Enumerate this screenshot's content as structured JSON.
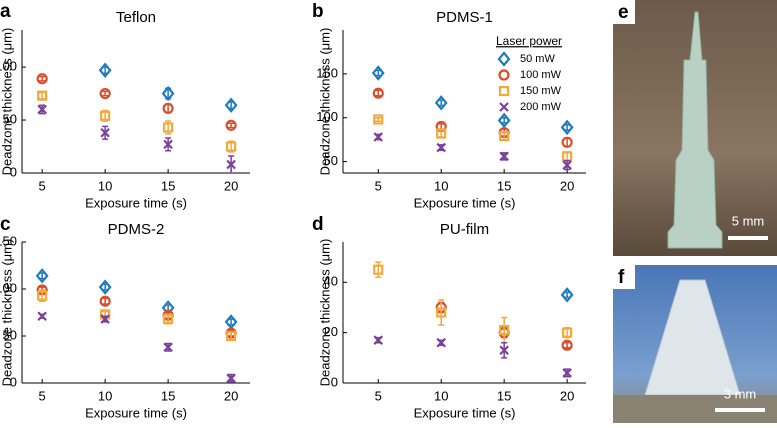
{
  "chart_data": [
    {
      "type": "scatter",
      "panel": "a",
      "title": "Teflon",
      "xlabel": "Exposure time (s)",
      "ylabel": "Deadzone thickness (μm)",
      "x": [
        5,
        10,
        15,
        20
      ],
      "xlim": [
        3.4,
        21.5
      ],
      "xticks": [
        5,
        10,
        15,
        20
      ],
      "ylim": [
        0,
        135
      ],
      "yticks": [
        0,
        50,
        100
      ],
      "series": [
        {
          "name": "50 mW",
          "color": "#1f7bbf",
          "marker": "diamond",
          "values": [
            null,
            97,
            75,
            64
          ],
          "errors": [
            null,
            3,
            5,
            3
          ]
        },
        {
          "name": "100 mW",
          "color": "#d94f2b",
          "marker": "circle",
          "values": [
            89,
            75,
            61,
            45
          ],
          "errors": [
            2,
            2,
            4,
            2
          ]
        },
        {
          "name": "150 mW",
          "color": "#f2a93b",
          "marker": "square",
          "values": [
            73,
            54,
            43,
            25
          ],
          "errors": [
            3,
            5,
            6,
            5
          ]
        },
        {
          "name": "200 mW",
          "color": "#7b3f9e",
          "marker": "x",
          "values": [
            60,
            38,
            27,
            8
          ],
          "errors": [
            4,
            6,
            6,
            8
          ]
        }
      ]
    },
    {
      "type": "scatter",
      "panel": "b",
      "title": "PDMS-1",
      "xlabel": "Exposure time (s)",
      "ylabel": "Deadzone thickness (μm)",
      "x": [
        5,
        10,
        15,
        20
      ],
      "xlim": [
        2.2,
        21.5
      ],
      "xticks": [
        5,
        10,
        15,
        20
      ],
      "ylim": [
        37,
        200
      ],
      "yticks": [
        50,
        100,
        150
      ],
      "legend": "upper right",
      "legend_title": "Laser power",
      "series": [
        {
          "name": "50 mW",
          "color": "#1f7bbf",
          "marker": "diamond",
          "values": [
            151,
            117,
            97,
            89
          ],
          "errors": [
            3,
            3,
            3,
            3
          ]
        },
        {
          "name": "100 mW",
          "color": "#d94f2b",
          "marker": "circle",
          "values": [
            128,
            90,
            83,
            72
          ],
          "errors": [
            3,
            3,
            4,
            5
          ]
        },
        {
          "name": "150 mW",
          "color": "#f2a93b",
          "marker": "square",
          "values": [
            98,
            82,
            79,
            56
          ],
          "errors": [
            2,
            4,
            4,
            5
          ]
        },
        {
          "name": "200 mW",
          "color": "#7b3f9e",
          "marker": "x",
          "values": [
            78,
            66,
            56,
            46
          ],
          "errors": [
            3,
            3,
            4,
            5
          ]
        }
      ]
    },
    {
      "type": "scatter",
      "panel": "c",
      "title": "PDMS-2",
      "xlabel": "Exposure time (s)",
      "ylabel": "Deadzone thickness (μm)",
      "x": [
        5,
        10,
        15,
        20
      ],
      "xlim": [
        3.4,
        21.5
      ],
      "xticks": [
        5,
        10,
        15,
        20
      ],
      "ylim": [
        0,
        150
      ],
      "yticks": [
        0,
        50,
        100,
        150
      ],
      "series": [
        {
          "name": "50 mW",
          "color": "#1f7bbf",
          "marker": "diamond",
          "values": [
            114,
            102,
            80,
            65
          ],
          "errors": [
            3,
            3,
            3,
            3
          ]
        },
        {
          "name": "100 mW",
          "color": "#d94f2b",
          "marker": "circle",
          "values": [
            99,
            87,
            72,
            53
          ],
          "errors": [
            3,
            3,
            3,
            3
          ]
        },
        {
          "name": "150 mW",
          "color": "#f2a93b",
          "marker": "square",
          "values": [
            93,
            73,
            68,
            50
          ],
          "errors": [
            6,
            3,
            5,
            4
          ]
        },
        {
          "name": "200 mW",
          "color": "#7b3f9e",
          "marker": "x",
          "values": [
            71,
            68,
            38,
            5
          ],
          "errors": [
            2,
            3,
            4,
            4
          ]
        }
      ]
    },
    {
      "type": "scatter",
      "panel": "d",
      "title": "PU-film",
      "xlabel": "Exposure time (s)",
      "ylabel": "Deadzone thickness (μm)",
      "x": [
        5,
        10,
        15,
        20
      ],
      "xlim": [
        2.2,
        21.5
      ],
      "xticks": [
        5,
        10,
        15,
        20
      ],
      "ylim": [
        0,
        56
      ],
      "yticks": [
        0,
        20,
        40
      ],
      "series": [
        {
          "name": "50 mW",
          "color": "#1f7bbf",
          "marker": "diamond",
          "values": [
            null,
            null,
            null,
            35
          ],
          "errors": [
            null,
            null,
            null,
            1
          ]
        },
        {
          "name": "100 mW",
          "color": "#d94f2b",
          "marker": "circle",
          "values": [
            null,
            30,
            20,
            15
          ],
          "errors": [
            null,
            2,
            2,
            1
          ]
        },
        {
          "name": "150 mW",
          "color": "#f2a93b",
          "marker": "square",
          "values": [
            45,
            28,
            21,
            20
          ],
          "errors": [
            3,
            5,
            5,
            2
          ]
        },
        {
          "name": "200 mW",
          "color": "#7b3f9e",
          "marker": "x",
          "values": [
            17,
            16,
            13,
            4
          ],
          "errors": [
            1,
            1,
            3,
            1.5
          ]
        }
      ]
    }
  ],
  "images": [
    {
      "panel": "e",
      "scale_bar": "5 mm"
    },
    {
      "panel": "f",
      "scale_bar": "3 mm"
    }
  ]
}
